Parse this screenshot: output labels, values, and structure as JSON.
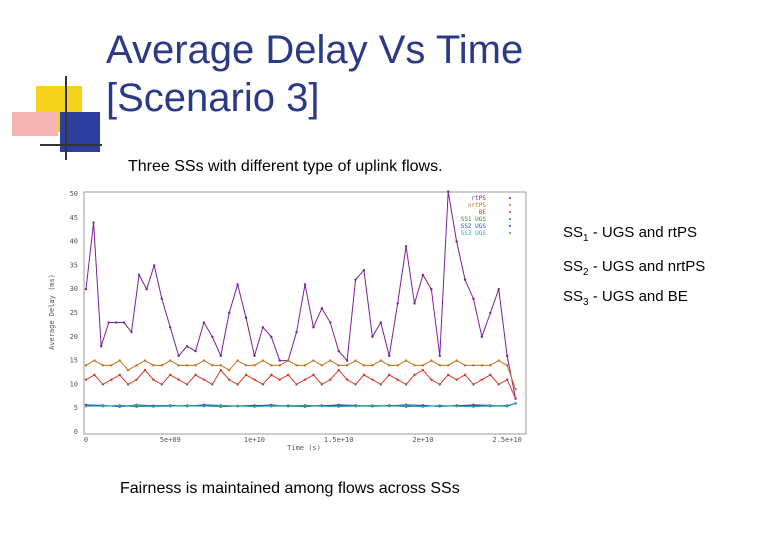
{
  "slide": {
    "title_line1": "Average Delay Vs Time",
    "title_line2": "[Scenario 3]",
    "subtitle": "Three SSs with different type of uplink flows.",
    "footer": "Fairness is maintained among flows across SSs",
    "ss_lines": [
      {
        "name": "SS",
        "sub": "1",
        "text": " - UGS and rtPS"
      },
      {
        "name": "SS",
        "sub": "2",
        "text": " - UGS and nrtPS"
      },
      {
        "name": "SS",
        "sub": "3",
        "text": " - UGS and BE"
      }
    ],
    "accent_colors": {
      "yellow": "#f5d21c",
      "red": "#f28d8d",
      "blue": "#2d3f9e",
      "title": "#2a3a84"
    }
  },
  "chart_data": {
    "type": "line",
    "xlabel": "Time (s)",
    "ylabel": "Average Delay (ms)",
    "xlim": [
      0,
      26000000000.0
    ],
    "ylim": [
      0,
      50
    ],
    "x_tick_values": [
      0,
      5000000000.0,
      10000000000.0,
      15000000000.0,
      20000000000.0,
      25000000000.0
    ],
    "x_tick_labels": [
      "0",
      "5e+09",
      "1e+10",
      "1.5e+10",
      "2e+10",
      "2.5e+10"
    ],
    "y_ticks": [
      0,
      5,
      10,
      15,
      20,
      25,
      30,
      35,
      40,
      45,
      50
    ],
    "legend_position": "top-right",
    "series": [
      {
        "name": "rtPS",
        "color": "#7b1f9e",
        "x": [
          0,
          0.45,
          0.9,
          1.35,
          1.8,
          2.25,
          2.7,
          3.15,
          3.6,
          4.05,
          4.5,
          5.0,
          5.5,
          6.0,
          6.5,
          7.0,
          7.5,
          8.0,
          8.5,
          9.0,
          9.5,
          10.0,
          10.5,
          11.0,
          11.5,
          12.0,
          12.5,
          13.0,
          13.5,
          14.0,
          14.5,
          15.0,
          15.5,
          16.0,
          16.5,
          17.0,
          17.5,
          18.0,
          18.5,
          19.0,
          19.5,
          20.0,
          20.5,
          21.0,
          21.5,
          22.0,
          22.5,
          23.0,
          23.5,
          24.0,
          24.5,
          25.0,
          25.5
        ],
        "y": [
          30,
          44,
          18,
          23,
          23,
          23,
          21,
          33,
          30,
          35,
          28,
          22,
          16,
          18,
          17,
          23,
          20,
          16,
          25,
          31,
          24,
          16,
          22,
          20,
          15,
          15,
          21,
          31,
          22,
          26,
          23,
          17,
          15,
          32,
          34,
          20,
          23,
          16,
          27,
          39,
          27,
          33,
          30,
          16,
          51,
          40,
          32,
          28,
          20,
          25,
          30,
          16,
          7
        ]
      },
      {
        "name": "nrtPS",
        "color": "#c8701c",
        "x": [
          0,
          0.5,
          1,
          1.5,
          2,
          2.5,
          3,
          3.5,
          4,
          4.5,
          5,
          5.5,
          6,
          6.5,
          7,
          7.5,
          8,
          8.5,
          9,
          9.5,
          10,
          10.5,
          11,
          11.5,
          12,
          12.5,
          13,
          13.5,
          14,
          14.5,
          15,
          15.5,
          16,
          16.5,
          17,
          17.5,
          18,
          18.5,
          19,
          19.5,
          20,
          20.5,
          21,
          21.5,
          22,
          22.5,
          23,
          23.5,
          24,
          24.5,
          25,
          25.5
        ],
        "y": [
          14,
          15,
          14,
          14,
          15,
          13,
          14,
          15,
          14,
          14,
          15,
          14,
          14,
          14,
          15,
          14,
          14,
          13,
          15,
          14,
          14,
          15,
          14,
          14,
          15,
          14,
          14,
          15,
          14,
          15,
          14,
          14,
          15,
          14,
          14,
          15,
          14,
          14,
          15,
          14,
          14,
          15,
          14,
          14,
          15,
          14,
          14,
          14,
          14,
          15,
          14,
          9
        ]
      },
      {
        "name": "BE",
        "color": "#d63a2a",
        "x": [
          0,
          0.5,
          1,
          1.5,
          2,
          2.5,
          3,
          3.5,
          4,
          4.5,
          5,
          5.5,
          6,
          6.5,
          7,
          7.5,
          8,
          8.5,
          9,
          9.5,
          10,
          10.5,
          11,
          11.5,
          12,
          12.5,
          13,
          13.5,
          14,
          14.5,
          15,
          15.5,
          16,
          16.5,
          17,
          17.5,
          18,
          18.5,
          19,
          19.5,
          20,
          20.5,
          21,
          21.5,
          22,
          22.5,
          23,
          23.5,
          24,
          24.5,
          25,
          25.5
        ],
        "y": [
          11,
          12,
          10,
          11,
          12,
          10,
          11,
          13,
          11,
          10,
          12,
          11,
          10,
          12,
          11,
          10,
          13,
          11,
          10,
          12,
          11,
          10,
          12,
          11,
          12,
          10,
          11,
          12,
          10,
          11,
          13,
          11,
          10,
          12,
          11,
          10,
          12,
          11,
          10,
          12,
          13,
          11,
          10,
          12,
          11,
          12,
          10,
          11,
          12,
          10,
          11,
          7
        ]
      },
      {
        "name": "SS1 UGS",
        "color": "#2a8a3a",
        "x": [
          0,
          1,
          2,
          3,
          4,
          5,
          6,
          7,
          8,
          9,
          10,
          11,
          12,
          13,
          14,
          15,
          16,
          17,
          18,
          19,
          20,
          21,
          22,
          23,
          24,
          25,
          25.5
        ],
        "y": [
          5.5,
          5.4,
          5.6,
          5.3,
          5.5,
          5.4,
          5.6,
          5.5,
          5.3,
          5.5,
          5.6,
          5.4,
          5.5,
          5.3,
          5.6,
          5.5,
          5.4,
          5.5,
          5.6,
          5.3,
          5.5,
          5.4,
          5.6,
          5.5,
          5.4,
          5.5,
          6
        ]
      },
      {
        "name": "SS2 UGS",
        "color": "#2a4ac8",
        "x": [
          0,
          1,
          2,
          3,
          4,
          5,
          6,
          7,
          8,
          9,
          10,
          11,
          12,
          13,
          14,
          15,
          16,
          17,
          18,
          19,
          20,
          21,
          22,
          23,
          24,
          25,
          25.5
        ],
        "y": [
          5.7,
          5.6,
          5.3,
          5.7,
          5.5,
          5.6,
          5.4,
          5.7,
          5.6,
          5.4,
          5.5,
          5.7,
          5.4,
          5.6,
          5.5,
          5.7,
          5.6,
          5.4,
          5.5,
          5.7,
          5.6,
          5.4,
          5.5,
          5.7,
          5.6,
          5.4,
          6
        ]
      },
      {
        "name": "SS3 UGS",
        "color": "#2aa8a8",
        "x": [
          0,
          1,
          2,
          3,
          4,
          5,
          6,
          7,
          8,
          9,
          10,
          11,
          12,
          13,
          14,
          15,
          16,
          17,
          18,
          19,
          20,
          21,
          22,
          23,
          24,
          25,
          25.5
        ],
        "y": [
          5.4,
          5.5,
          5.5,
          5.6,
          5.3,
          5.5,
          5.5,
          5.4,
          5.6,
          5.5,
          5.3,
          5.5,
          5.6,
          5.5,
          5.4,
          5.3,
          5.5,
          5.6,
          5.4,
          5.5,
          5.3,
          5.6,
          5.4,
          5.3,
          5.5,
          5.6,
          6
        ]
      }
    ],
    "x_scale_note": "x values above are in units of 1e9"
  }
}
